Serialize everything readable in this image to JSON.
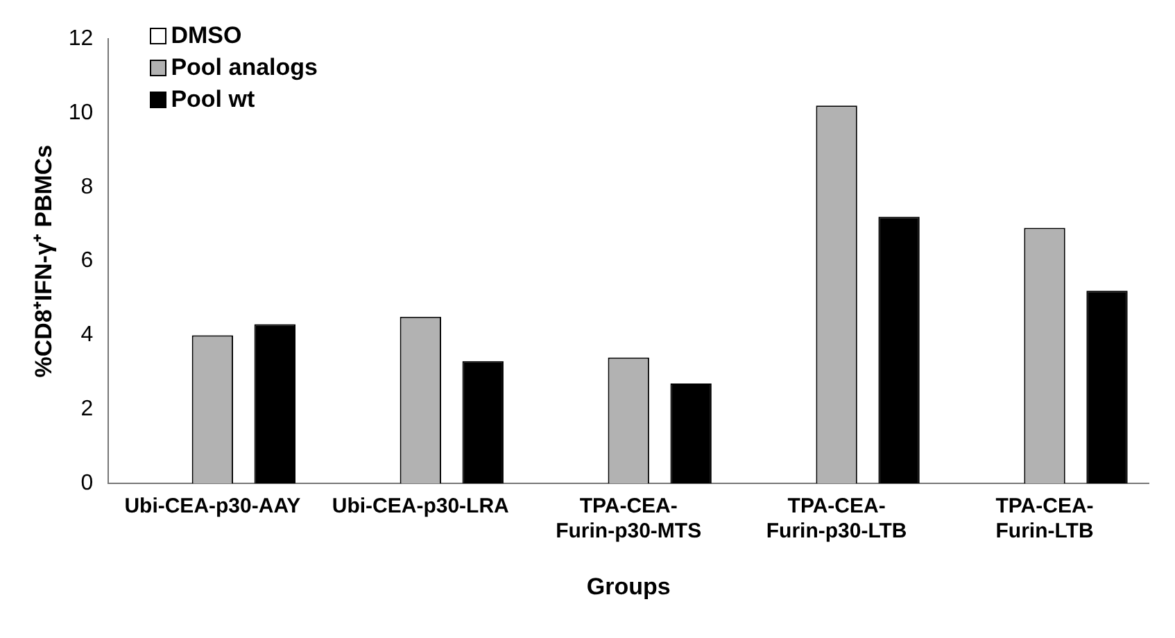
{
  "chart_data": {
    "type": "bar",
    "xlabel": "Groups",
    "ylabel": "%CD8⁺IFN-γ⁺ PBMCs",
    "categories": [
      "Ubi-CEA-p30-AAY",
      "Ubi-CEA-p30-LRA",
      "TPA-CEA-Furin-p30-MTS",
      "TPA-CEA-Furin-p30-LTB",
      "TPA-CEA-Furin-LTB"
    ],
    "series": [
      {
        "name": "DMSO",
        "color": "#ffffff",
        "values": [
          0,
          0,
          0,
          0,
          0
        ]
      },
      {
        "name": "Pool analogs",
        "color": "#b2b2b2",
        "values": [
          4.0,
          4.5,
          3.4,
          10.2,
          6.9
        ]
      },
      {
        "name": "Pool wt",
        "color": "#000000",
        "values": [
          4.3,
          3.3,
          2.7,
          7.2,
          5.2
        ]
      }
    ],
    "ylim": [
      0,
      12
    ],
    "yticks": [
      0,
      2,
      4,
      6,
      8,
      10,
      12
    ],
    "grid": false,
    "legend": "top left"
  }
}
